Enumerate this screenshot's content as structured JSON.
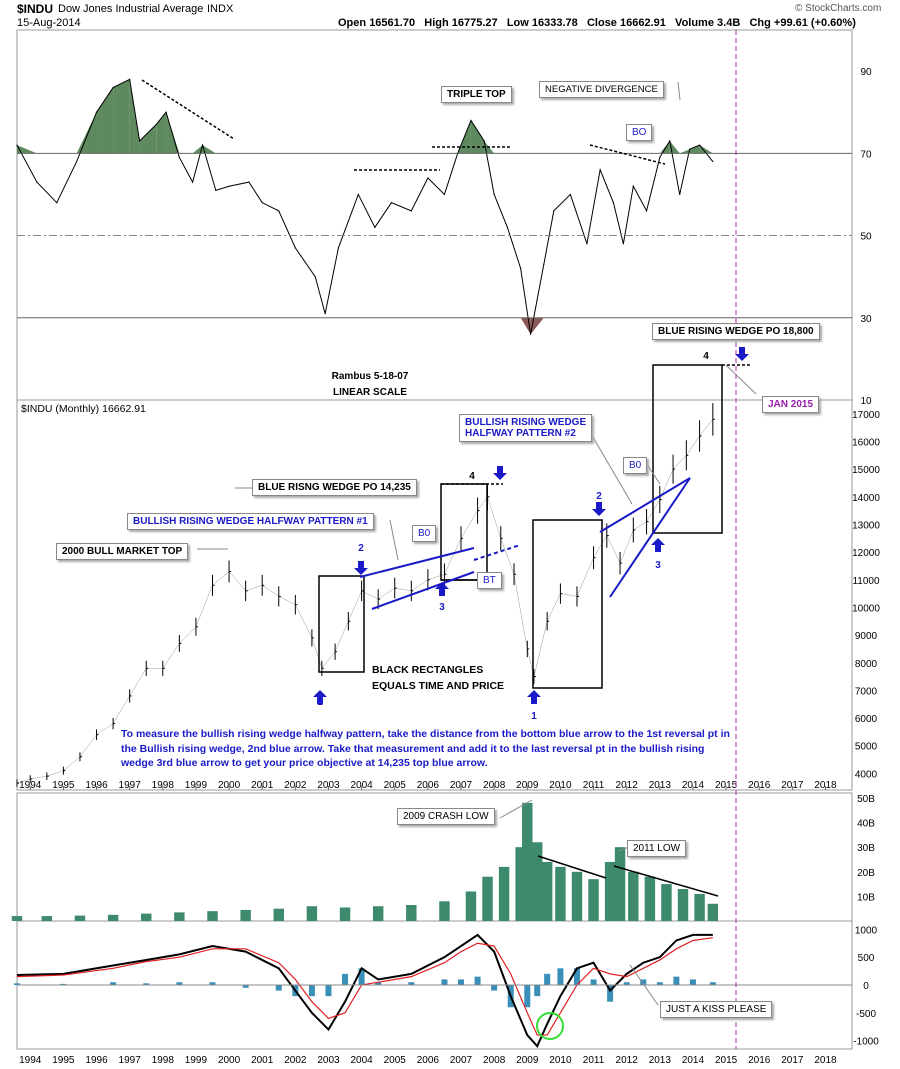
{
  "header": {
    "symbol": "$INDU",
    "name": "Dow Jones Industrial Average",
    "exchange": "INDX",
    "date": "15-Aug-2014",
    "open_label": "Open",
    "open": "16561.70",
    "high_label": "High",
    "high": "16775.27",
    "low_label": "Low",
    "low": "16333.78",
    "close_label": "Close",
    "close": "16662.91",
    "volume_label": "Volume",
    "volume": "3.4B",
    "change_label": "Chg",
    "change": "+99.61 (+0.60%)",
    "brand": "© StockCharts.com"
  },
  "colors": {
    "price_bar": "#000000",
    "annotation_blue": "#1a1ac8",
    "rsi_fill": "#5f8a5f",
    "rsi_oversold_fill": "#8a5858",
    "volume": "#3d8a6c",
    "macd_signal": "#e02020",
    "histogram": "#3a8fb8",
    "highlight_circle": "#33dd33",
    "cursor_line": "#b030b0"
  },
  "chart_data": [
    {
      "type": "line",
      "panel": "RSI",
      "x": [
        1993.6,
        1994.2,
        1994.8,
        1995.4,
        1996.0,
        1996.5,
        1997.0,
        1997.3,
        1997.8,
        1998.1,
        1998.5,
        1998.9,
        1999.2,
        1999.6,
        2000.0,
        2000.6,
        2001.0,
        2001.5,
        2002.0,
        2002.6,
        2002.9,
        2003.3,
        2003.9,
        2004.4,
        2004.9,
        2005.5,
        2006.0,
        2006.5,
        2006.9,
        2007.3,
        2007.7,
        2008.0,
        2008.4,
        2008.8,
        2009.1,
        2009.5,
        2009.8,
        2010.3,
        2010.8,
        2011.2,
        2011.6,
        2011.9,
        2012.2,
        2012.6,
        2013.0,
        2013.3,
        2013.6,
        2013.9,
        2014.2,
        2014.6
      ],
      "values": [
        72,
        63,
        58,
        68,
        80,
        86,
        88,
        73,
        77,
        80,
        69,
        63,
        72,
        61,
        62,
        63,
        58,
        56,
        47,
        40,
        31,
        47,
        60,
        52,
        58,
        56,
        64,
        60,
        70,
        78,
        73,
        60,
        52,
        42,
        26,
        43,
        56,
        60,
        48,
        66,
        58,
        48,
        62,
        56,
        69,
        73,
        60,
        71,
        72,
        68
      ],
      "overbought": 70,
      "oversold": 30,
      "midline": 50,
      "y_ticks": [
        90,
        70,
        50,
        30,
        10
      ],
      "ylim": [
        10,
        100
      ]
    },
    {
      "type": "bar",
      "panel": "price",
      "label": "$INDU (Monthly) 16662.91",
      "scale_label": "LINEAR SCALE",
      "x": [
        1993.6,
        1994.0,
        1994.5,
        1995.0,
        1995.5,
        1996.0,
        1996.5,
        1997.0,
        1997.5,
        1998.0,
        1998.5,
        1999.0,
        1999.5,
        2000.0,
        2000.5,
        2001.0,
        2001.5,
        2002.0,
        2002.5,
        2002.8,
        2003.2,
        2003.6,
        2004.0,
        2004.5,
        2005.0,
        2005.5,
        2006.0,
        2006.5,
        2007.0,
        2007.5,
        2007.8,
        2008.2,
        2008.6,
        2009.0,
        2009.2,
        2009.6,
        2010.0,
        2010.5,
        2011.0,
        2011.4,
        2011.8,
        2012.2,
        2012.6,
        2013.0,
        2013.4,
        2013.8,
        2014.2,
        2014.6
      ],
      "values": [
        3650,
        3800,
        3900,
        4100,
        4600,
        5400,
        5800,
        6800,
        7800,
        7800,
        8700,
        9300,
        10800,
        11300,
        10600,
        10800,
        10400,
        10100,
        8900,
        7800,
        8400,
        9500,
        10600,
        10300,
        10700,
        10600,
        11000,
        11200,
        12500,
        13500,
        14000,
        12500,
        11200,
        8500,
        7500,
        9500,
        10500,
        10400,
        11800,
        12600,
        11600,
        12800,
        13100,
        13900,
        15000,
        15500,
        16200,
        16800
      ],
      "y_ticks": [
        17000,
        16000,
        15000,
        14000,
        13000,
        12000,
        11000,
        10000,
        9000,
        8000,
        7000,
        6000,
        5000,
        4000
      ],
      "x_ticks": [
        "1994",
        "1995",
        "1996",
        "1997",
        "1998",
        "1999",
        "2000",
        "2001",
        "2002",
        "2003",
        "2004",
        "2005",
        "2006",
        "2007",
        "2008",
        "2009",
        "2010",
        "2011",
        "2012",
        "2013",
        "2014",
        "2015",
        "2016",
        "2017",
        "2018"
      ],
      "ylim": [
        3400,
        17500
      ]
    },
    {
      "type": "bar",
      "panel": "volume",
      "x": [
        1993.6,
        1994.5,
        1995.5,
        1996.5,
        1997.5,
        1998.5,
        1999.5,
        2000.5,
        2001.5,
        2002.5,
        2003.5,
        2004.5,
        2005.5,
        2006.5,
        2007.3,
        2007.8,
        2008.3,
        2008.8,
        2009.0,
        2009.3,
        2009.6,
        2010.0,
        2010.5,
        2011.0,
        2011.5,
        2011.8,
        2012.2,
        2012.7,
        2013.2,
        2013.7,
        2014.2,
        2014.6
      ],
      "values": [
        2,
        2,
        2.2,
        2.5,
        3,
        3.5,
        4,
        4.5,
        5,
        6,
        5.5,
        6,
        6.5,
        8,
        12,
        18,
        22,
        30,
        48,
        32,
        24,
        22,
        20,
        17,
        24,
        30,
        20,
        18,
        15,
        13,
        11,
        7
      ],
      "y_ticks": [
        50,
        40,
        30,
        20,
        10
      ],
      "y_tick_labels": [
        "50B",
        "40B",
        "30B",
        "20B",
        "10B"
      ],
      "ylim": [
        0,
        52
      ]
    },
    {
      "type": "line",
      "panel": "MACD",
      "x": [
        1993.6,
        1995.0,
        1996.5,
        1997.5,
        1998.5,
        1999.5,
        2000.5,
        2001.5,
        2002.0,
        2002.5,
        2003.0,
        2003.5,
        2004.0,
        2004.5,
        2005.5,
        2006.5,
        2007.0,
        2007.5,
        2008.0,
        2008.5,
        2009.0,
        2009.3,
        2009.6,
        2010.0,
        2010.5,
        2011.0,
        2011.5,
        2012.0,
        2012.5,
        2013.0,
        2013.5,
        2014.0,
        2014.6
      ],
      "series": [
        {
          "values": [
            180,
            200,
            350,
            450,
            550,
            700,
            600,
            300,
            -100,
            -500,
            -800,
            -300,
            300,
            100,
            200,
            500,
            700,
            900,
            600,
            -200,
            -900,
            -1100,
            -700,
            -200,
            300,
            400,
            -100,
            200,
            400,
            500,
            800,
            900,
            900
          ]
        },
        {
          "values": [
            150,
            180,
            300,
            420,
            500,
            650,
            650,
            400,
            100,
            -300,
            -600,
            -500,
            0,
            50,
            150,
            400,
            600,
            750,
            700,
            200,
            -500,
            -900,
            -900,
            -500,
            0,
            300,
            200,
            150,
            300,
            450,
            650,
            800,
            850
          ]
        }
      ],
      "y_ticks": [
        1000,
        500,
        0,
        -500,
        -1000
      ],
      "ylim": [
        -1150,
        1150
      ]
    }
  ],
  "annotations": {
    "triple_top": "TRIPLE TOP",
    "negative_divergence": "NEGATIVE DIVERGENCE",
    "bo": "BO",
    "b0": "B0",
    "bt": "BT",
    "blue_rising_wedge_po_18800": "BLUE RISING WEDGE PO 18,800",
    "rambus": "Rambus  5-18-07",
    "linear_scale": "LINEAR SCALE",
    "jan_2015": "JAN 2015",
    "bullish_rising_wedge_2_line1": "BULLISH RISING WEDGE",
    "bullish_rising_wedge_2_line2": "HALFWAY PATTERN #2",
    "blue_rising_wedge_po_14235": "BLUE RISNG WEDGE PO 14,235",
    "bullish_rising_wedge_1": "BULLISH RISING WEDGE HALFWAY PATTERN #1",
    "bull_market_top": "2000 BULL MARKET TOP",
    "black_rectangles_line1": "BLACK RECTANGLES",
    "black_rectangles_line2": "EQUALS TIME AND PRICE",
    "num_1": "1",
    "num_2": "2",
    "num_3": "3",
    "num_4": "4",
    "note": "To measure the bullish rising wedge halfway pattern, take the distance from the bottom blue arrow to the 1st reversal pt in the Bullish rising wedge, 2nd blue arrow. Take that measurement and add it to the last reversal pt in the bullish rising wedge 3rd blue arrow to get your price objective at 14,235 top blue arrow.",
    "crash_low": "2009 CRASH LOW",
    "low_2011": "2011 LOW",
    "kiss": "JUST A KISS PLEASE"
  }
}
